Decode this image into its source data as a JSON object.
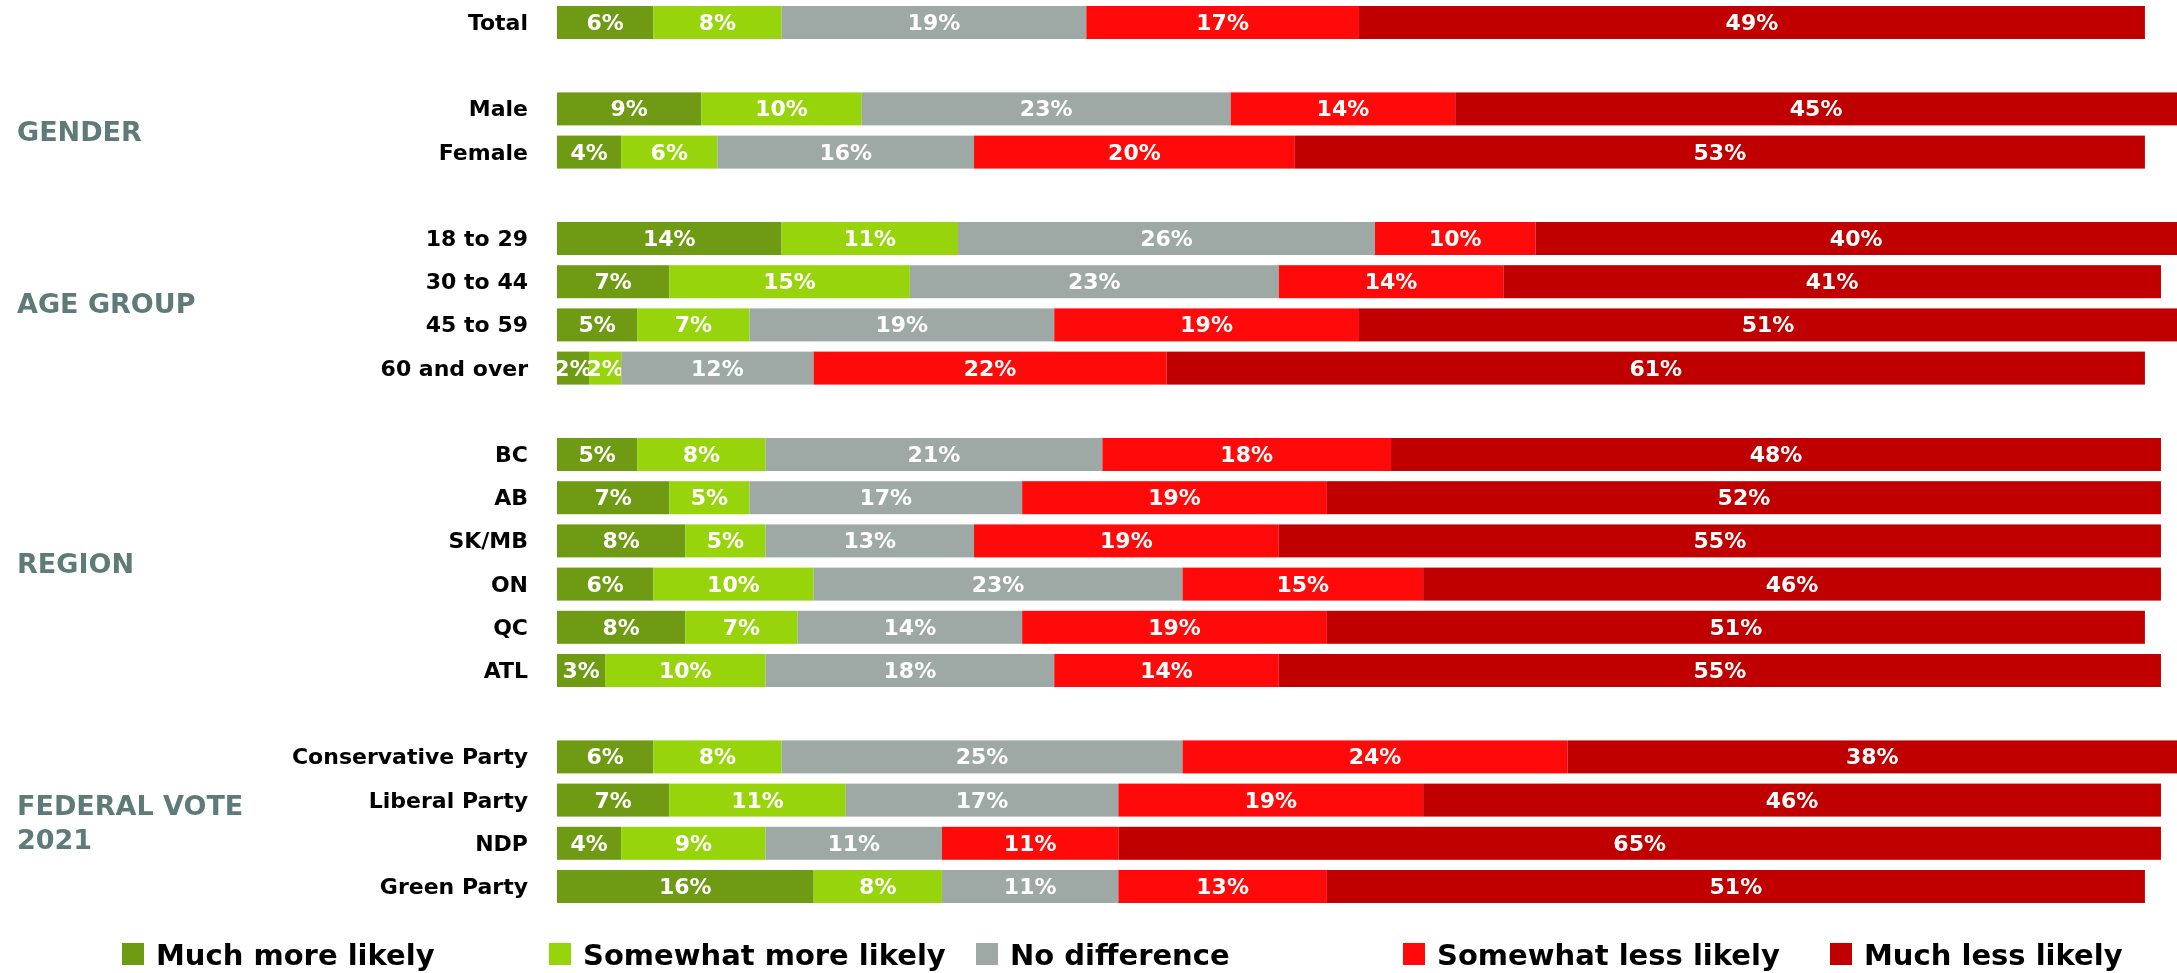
{
  "chart_data": {
    "type": "bar",
    "orientation": "horizontal",
    "stacked": true,
    "xlim": [
      0,
      101
    ],
    "tick_labels": "y",
    "legend": "bottom",
    "grid": false,
    "categories": [
      "Total",
      null,
      "Male",
      "Female",
      null,
      "18 to 29",
      "30 to 44",
      "45 to 59",
      "60 and over",
      null,
      "BC",
      "AB",
      "SK/MB",
      "ON",
      "QC",
      "ATL",
      null,
      "Conservative Party",
      "Liberal Party",
      "NDP",
      "Green Party"
    ],
    "annotations": [
      "GENDER",
      "AGE GROUP",
      "REGION",
      "FEDERAL VOTE 2021"
    ],
    "series": [
      {
        "name": "Much more likely",
        "color": "#6f9a13",
        "values": [
          6,
          null,
          9,
          4,
          null,
          14,
          7,
          5,
          2,
          null,
          5,
          7,
          8,
          6,
          8,
          3,
          null,
          6,
          7,
          4,
          16
        ],
        "value_labels": [
          "6%",
          null,
          "9%",
          "4%",
          null,
          "14%",
          "7%",
          "5%",
          "2%",
          null,
          "5%",
          "7%",
          "8%",
          "6%",
          "8%",
          "3%",
          null,
          "6%",
          "7%",
          "4%",
          "16%"
        ]
      },
      {
        "name": "Somewhat more likely",
        "color": "#98d40c",
        "values": [
          8,
          null,
          10,
          6,
          null,
          11,
          15,
          7,
          2,
          null,
          8,
          5,
          5,
          10,
          7,
          10,
          null,
          8,
          11,
          9,
          8
        ],
        "value_labels": [
          "8%",
          null,
          "10%",
          "6%",
          null,
          "11%",
          "15%",
          "7%",
          "2%",
          null,
          "8%",
          "5%",
          "5%",
          "10%",
          "7%",
          "10%",
          null,
          "8%",
          "11%",
          "9%",
          "8%"
        ]
      },
      {
        "name": "No difference",
        "color": "#9ea9a6",
        "values": [
          19,
          null,
          23,
          16,
          null,
          26,
          23,
          19,
          12,
          null,
          21,
          17,
          13,
          23,
          14,
          18,
          null,
          25,
          17,
          11,
          11
        ],
        "value_labels": [
          "19%",
          null,
          "23%",
          "16%",
          null,
          "26%",
          "23%",
          "19%",
          "12%",
          null,
          "21%",
          "17%",
          "13%",
          "23%",
          "14%",
          "18%",
          null,
          "25%",
          "17%",
          "11%",
          "11%"
        ]
      },
      {
        "name": "Somewhat less likely",
        "color": "#ff0a0a",
        "values": [
          17,
          null,
          14,
          20,
          null,
          10,
          14,
          19,
          22,
          null,
          18,
          19,
          19,
          15,
          19,
          14,
          null,
          24,
          19,
          11,
          13
        ],
        "value_labels": [
          "17%",
          null,
          "14%",
          "20%",
          null,
          "10%",
          "14%",
          "19%",
          "22%",
          null,
          "18%",
          "19%",
          "19%",
          "15%",
          "19%",
          "14%",
          null,
          "24%",
          "19%",
          "11%",
          "13%"
        ]
      },
      {
        "name": "Much less likely",
        "color": "#c00000",
        "values": [
          49,
          null,
          45,
          53,
          null,
          40,
          41,
          51,
          61,
          null,
          48,
          52,
          55,
          46,
          51,
          55,
          null,
          38,
          46,
          65,
          51
        ],
        "value_labels": [
          "49%",
          null,
          "45%",
          "53%",
          null,
          "40%",
          "41%",
          "51%",
          "61%",
          null,
          "48%",
          "52%",
          "55%",
          "46%",
          "51%",
          "55%",
          null,
          "38%",
          "46%",
          "65%",
          "51%"
        ]
      }
    ]
  }
}
